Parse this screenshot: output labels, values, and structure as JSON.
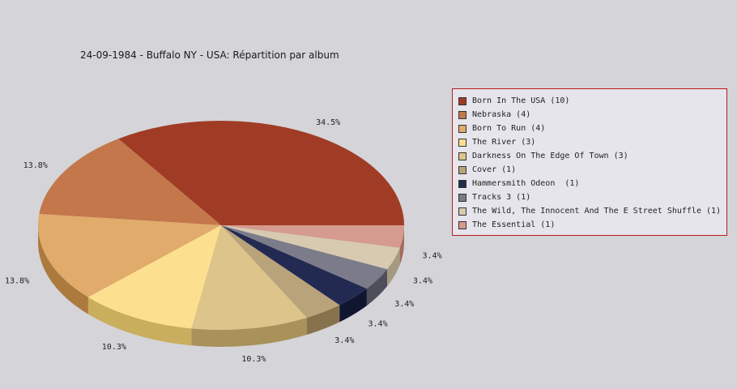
{
  "chart_data": {
    "type": "pie",
    "title": "24-09-1984 - Buffalo NY - USA:  Répartition par album",
    "legend_position": "right",
    "slices": [
      {
        "label": "Born In The USA",
        "count": 10,
        "percent_label": "34.5%",
        "color": "#a03c25",
        "side_color": "#6e0e04"
      },
      {
        "label": "Nebraska",
        "count": 4,
        "percent_label": "13.8%",
        "color": "#c3774b",
        "side_color": "#8f4717"
      },
      {
        "label": "Born To Run",
        "count": 4,
        "percent_label": "13.8%",
        "color": "#e0ab6b",
        "side_color": "#ac7a3d"
      },
      {
        "label": "The River",
        "count": 3,
        "percent_label": "10.3%",
        "color": "#fde08f",
        "side_color": "#c9ae5e"
      },
      {
        "label": "Darkness On The Edge Of Town",
        "count": 3,
        "percent_label": "10.3%",
        "color": "#dcc48a",
        "side_color": "#a8925a"
      },
      {
        "label": "Cover",
        "count": 1,
        "percent_label": "3.4%",
        "color": "#b8a37b",
        "side_color": "#86734d"
      },
      {
        "label": "Hammersmith Odeon ",
        "count": 1,
        "percent_label": "3.4%",
        "color": "#232a52",
        "side_color": "#101530"
      },
      {
        "label": "Tracks 3",
        "count": 1,
        "percent_label": "3.4%",
        "color": "#7c7b89",
        "side_color": "#4e4d5a"
      },
      {
        "label": "The Wild, The Innocent And The E Street Shuffle",
        "count": 1,
        "percent_label": "3.4%",
        "color": "#d7cab0",
        "side_color": "#a59981"
      },
      {
        "label": "The Essential",
        "count": 1,
        "percent_label": "3.4%",
        "color": "#d49b8e",
        "side_color": "#a36c60"
      }
    ]
  },
  "legend": {
    "items": [
      "Born In The USA (10)",
      "Nebraska (4)",
      "Born To Run (4)",
      "The River (3)",
      "Darkness On The Edge Of Town (3)",
      "Cover (1)",
      "Hammersmith Odeon  (1)",
      "Tracks 3 (1)",
      "The Wild, The Innocent And The E Street Shuffle (1)",
      "The Essential (1)"
    ]
  }
}
